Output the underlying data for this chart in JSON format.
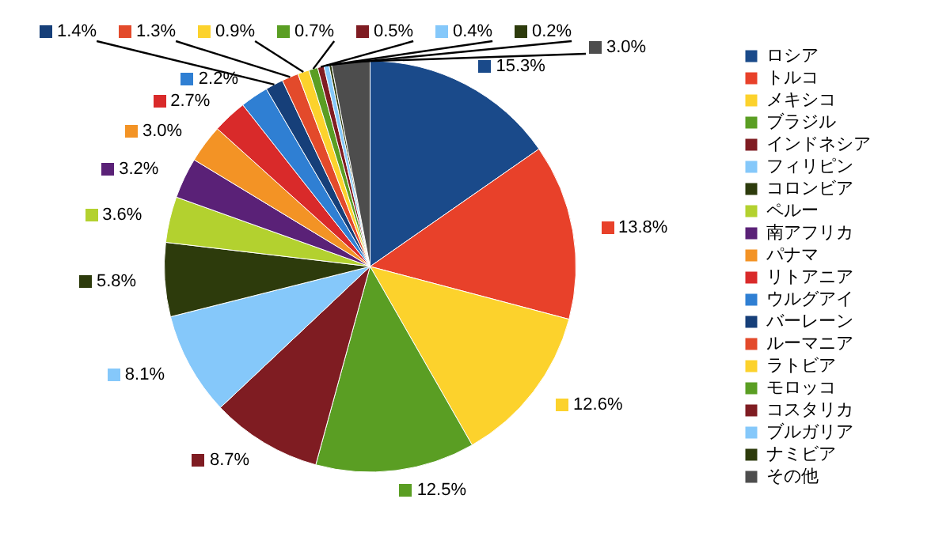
{
  "chart_data": {
    "type": "pie",
    "categories": [
      "ロシア",
      "トルコ",
      "メキシコ",
      "ブラジル",
      "インドネシア",
      "フィリピン",
      "コロンビア",
      "ペルー",
      "南アフリカ",
      "パナマ",
      "リトアニア",
      "ウルグアイ",
      "バーレーン",
      "ルーマニア",
      "ラトビア",
      "モロッコ",
      "コスタリカ",
      "ブルガリア",
      "ナミビア",
      "その他"
    ],
    "values": [
      15.3,
      13.8,
      12.6,
      12.5,
      8.7,
      8.1,
      5.8,
      3.6,
      3.2,
      3.0,
      2.7,
      2.2,
      1.4,
      1.3,
      0.9,
      0.7,
      0.5,
      0.4,
      0.2,
      3.0
    ],
    "value_labels": [
      "15.3%",
      "13.8%",
      "12.6%",
      "12.5%",
      "8.7%",
      "8.1%",
      "5.8%",
      "3.6%",
      "3.2%",
      "3.0%",
      "2.7%",
      "2.2%",
      "1.4%",
      "1.3%",
      "0.9%",
      "0.7%",
      "0.5%",
      "0.4%",
      "0.2%",
      "3.0%"
    ],
    "colors": [
      "#1a4a8a",
      "#e8412a",
      "#fcd22c",
      "#5a9e23",
      "#7f1c22",
      "#85c8fa",
      "#2d3b0c",
      "#b3d12f",
      "#5a2177",
      "#f39325",
      "#d92a2a",
      "#2f7fd3",
      "#163f79",
      "#e34a2b",
      "#fcd22c",
      "#5a9e23",
      "#7f1c22",
      "#85c8fa",
      "#2d3b0c",
      "#4d4d4d"
    ],
    "legend": "right"
  }
}
